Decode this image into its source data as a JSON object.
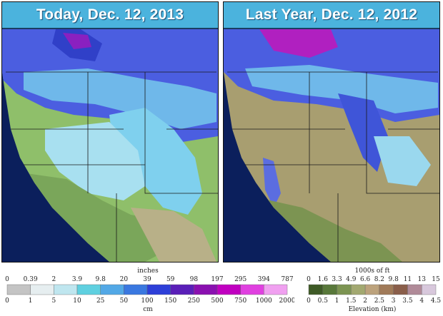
{
  "panels": {
    "left": {
      "title": "Today, Dec. 12, 2013"
    },
    "right": {
      "title": "Last Year, Dec. 12, 2012"
    }
  },
  "snow_legend": {
    "unit_top": "inches",
    "unit_bottom": "cm",
    "inches_labels": [
      "0",
      "0.39",
      "2",
      "3.9",
      "9.8",
      "20",
      "39",
      "59",
      "98",
      "197",
      "295",
      "394",
      "787"
    ],
    "cm_labels": [
      "0",
      "1",
      "5",
      "10",
      "25",
      "50",
      "100",
      "150",
      "250",
      "500",
      "750",
      "1000",
      "2000"
    ],
    "colors": [
      "#c4c4c4",
      "#e6eef0",
      "#bfe6ef",
      "#5fd0e0",
      "#52a8e6",
      "#3a78e0",
      "#2d3fd8",
      "#5a1fb8",
      "#8a10b0",
      "#c000c0",
      "#e040e0",
      "#f0a0f0"
    ]
  },
  "elev_legend": {
    "unit_top": "1000s of ft",
    "unit_bottom": "Elevation (km)",
    "ft_labels": [
      "0",
      "1.6",
      "3.3",
      "4.9",
      "6.6",
      "8.2",
      "9.8",
      "11",
      "13",
      "15"
    ],
    "km_labels": [
      "0",
      "0.5",
      "1",
      "1.5",
      "2",
      "2.5",
      "3",
      "3.5",
      "4",
      "4.5"
    ],
    "colors": [
      "#3e5a26",
      "#58783a",
      "#7c9452",
      "#a2a870",
      "#bca27c",
      "#a07a58",
      "#8a5e4a",
      "#b08a98",
      "#d8c8dc"
    ]
  }
}
